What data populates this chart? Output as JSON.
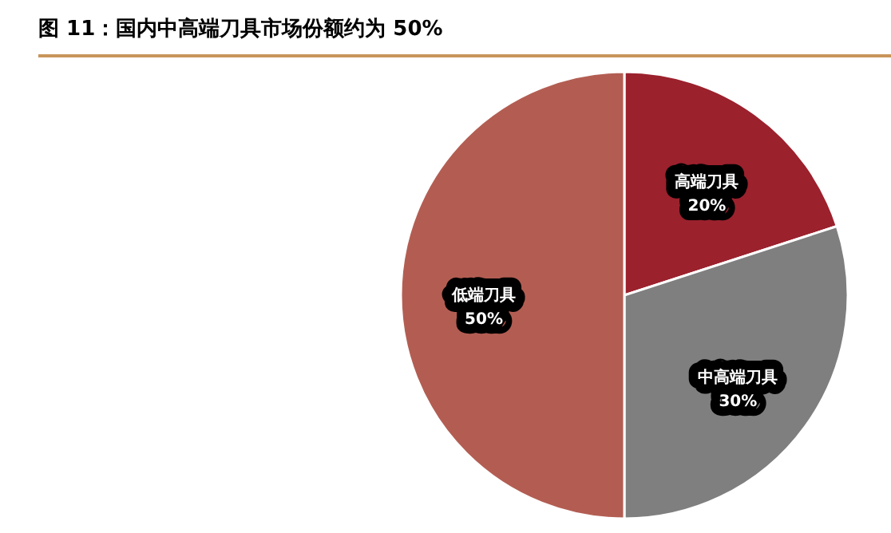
{
  "chart_data": {
    "type": "pie",
    "title": "图 11：国内中高端刀具市场份额约为 50%",
    "categories": [
      "高端刀具",
      "中高端刀具",
      "低端刀具"
    ],
    "values": [
      20,
      30,
      50
    ],
    "value_labels": [
      "20%",
      "30%",
      "50%"
    ],
    "colors": [
      "#9b212d",
      "#7f7f7f",
      "#b35d52"
    ]
  }
}
